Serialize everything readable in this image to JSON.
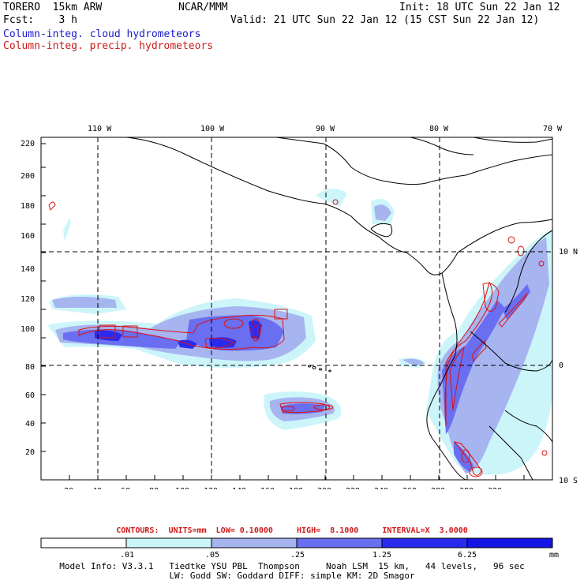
{
  "header": {
    "model": "TORERO  15km ARW",
    "org": "NCAR/MMM",
    "init": "Init: 18 UTC Sun 22 Jan 12",
    "fcst": "Fcst:    3 h",
    "valid": "Valid: 21 UTC Sun 22 Jan 12 (15 CST Sun 22 Jan 12)",
    "field1": "Column-integ. cloud hydrometeors",
    "field2": "Column-integ. precip. hydrometeors"
  },
  "map": {
    "top_lon_labels": [
      "110 W",
      "100 W",
      "90 W",
      "80 W",
      "70 W"
    ],
    "right_lat_labels": [
      "10 N",
      "0",
      "10 S"
    ],
    "x_ticks": [
      "20",
      "40",
      "60",
      "80",
      "100",
      "120",
      "140",
      "160",
      "180",
      "200",
      "220",
      "240",
      "260",
      "280",
      "300",
      "320"
    ],
    "y_ticks": [
      "20",
      "40",
      "60",
      "80",
      "100",
      "120",
      "140",
      "160",
      "180",
      "200",
      "220"
    ]
  },
  "contours_note": "CONTOURS:  UNITS=mm  LOW= 0.10000     HIGH=  8.1000     INTERVAL=X  3.0000",
  "colorbar": {
    "labels": [
      ".01",
      ".05",
      ".25",
      "1.25",
      "6.25"
    ],
    "unit": "mm",
    "colors": [
      "#ffffff",
      "#ccf5fa",
      "#a6b4f0",
      "#6a6ef0",
      "#2a2aee",
      "#1414e6"
    ]
  },
  "model_info": {
    "line1": "Model Info: V3.3.1   Tiedtke YSU PBL  Thompson     Noah LSM  15 km,   44 levels,   96 sec",
    "line2": "LW: Godd SW: Goddard DIFF: simple KM: 2D Smagor"
  },
  "colors": {
    "cloud": "#1a1acc",
    "precip": "#dd1111",
    "coast": "#000000"
  }
}
